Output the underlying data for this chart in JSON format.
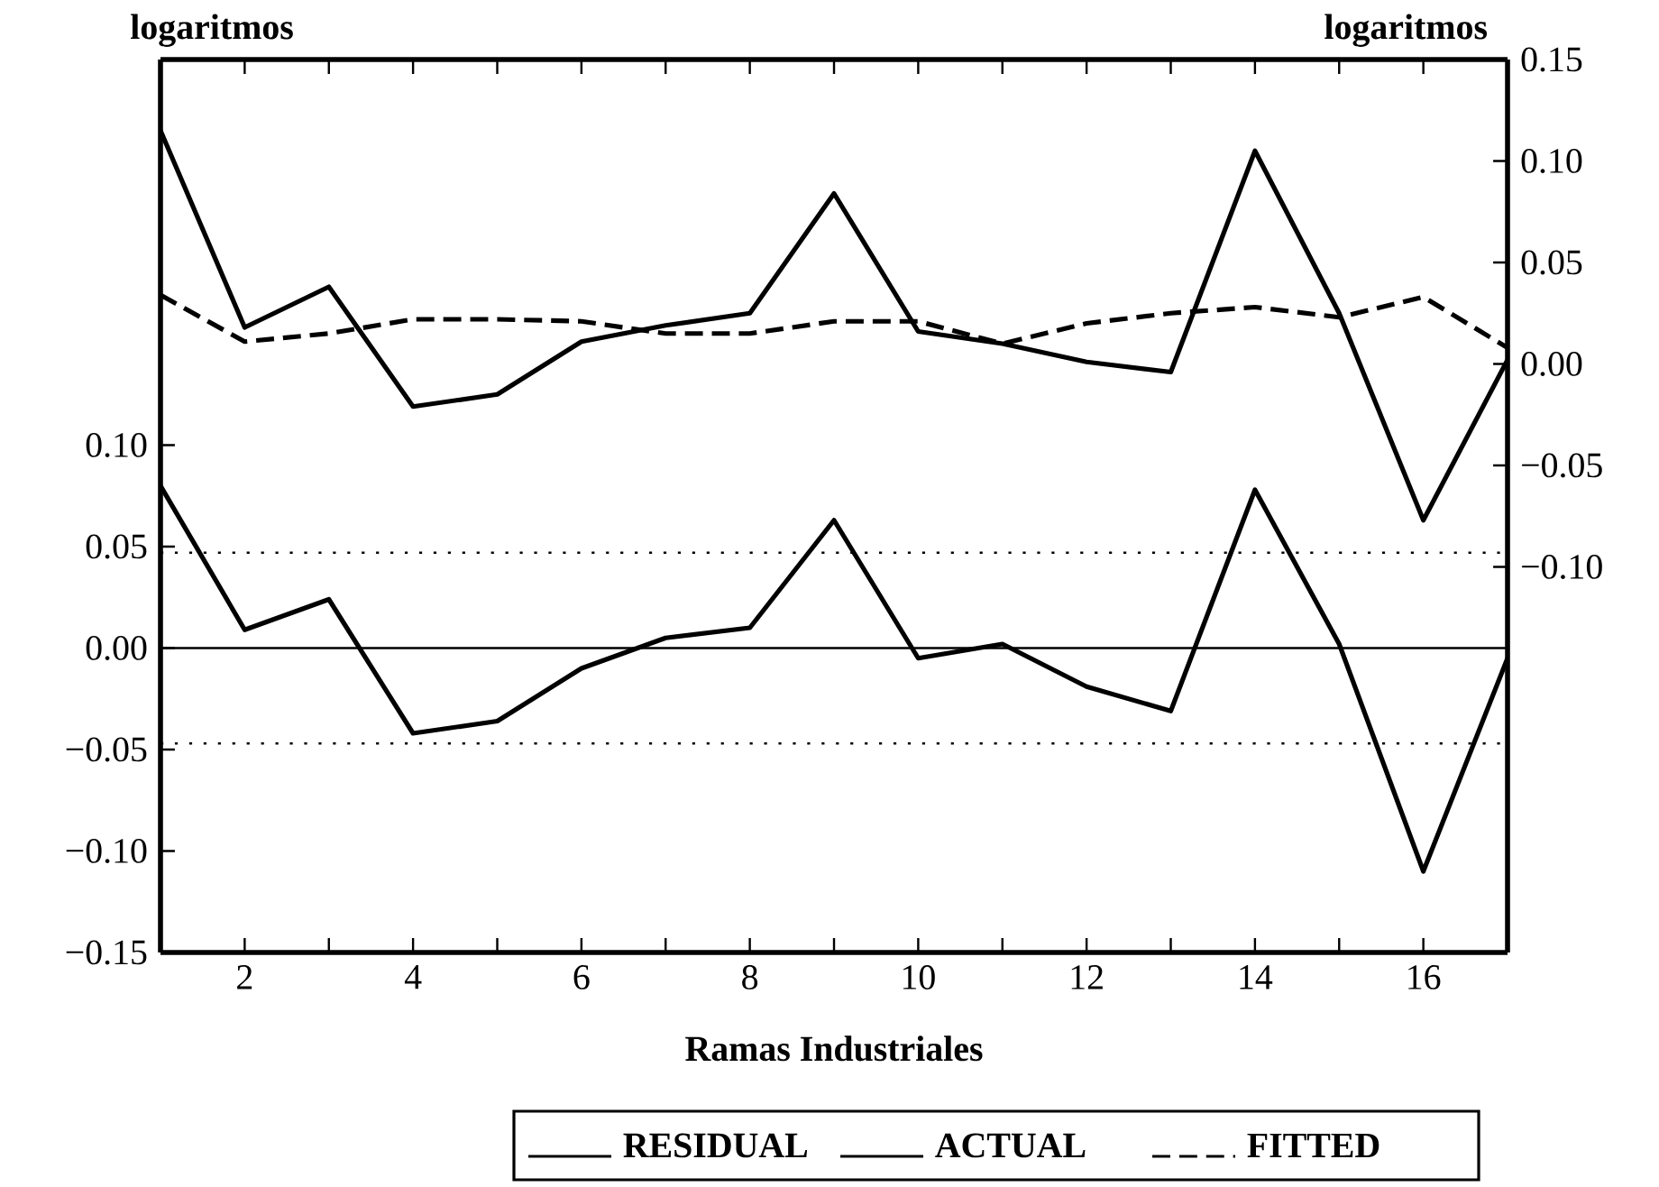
{
  "chart_data": {
    "type": "line",
    "xlabel": "Ramas Industriales",
    "ylabel": "logaritmos",
    "y2label": "logaritmos",
    "x": [
      1,
      2,
      3,
      4,
      5,
      6,
      7,
      8,
      9,
      10,
      11,
      12,
      13,
      14,
      15,
      16,
      17
    ],
    "series": [
      {
        "name": "RESIDUAL",
        "color": "#000000",
        "axis": "y",
        "line_style": "solid",
        "values": [
          0.08,
          0.009,
          0.024,
          -0.042,
          -0.036,
          -0.01,
          0.005,
          0.01,
          0.063,
          -0.005,
          0.002,
          -0.019,
          -0.031,
          0.078,
          0.002,
          -0.11,
          -0.005
        ]
      },
      {
        "name": "ACTUAL",
        "color": "#000000",
        "axis": "y2",
        "line_style": "solid",
        "values": [
          0.115,
          0.018,
          0.038,
          -0.021,
          -0.015,
          0.011,
          0.019,
          0.025,
          0.084,
          0.016,
          0.01,
          0.001,
          -0.004,
          0.105,
          0.025,
          -0.077,
          0.002
        ]
      },
      {
        "name": "FITTED",
        "color": "#000000",
        "axis": "y2",
        "line_style": "dashed",
        "values": [
          0.034,
          0.011,
          0.015,
          0.022,
          0.022,
          0.021,
          0.015,
          0.015,
          0.021,
          0.021,
          0.01,
          0.02,
          0.025,
          0.028,
          0.023,
          0.033,
          0.008
        ]
      }
    ],
    "xlim": [
      1,
      17
    ],
    "xticks": [
      {
        "value": 1,
        "label": null
      },
      2,
      {
        "value": 3,
        "label": null
      },
      4,
      {
        "value": 5,
        "label": null
      },
      6,
      {
        "value": 7,
        "label": null
      },
      8,
      {
        "value": 9,
        "label": null
      },
      10,
      {
        "value": 11,
        "label": null
      },
      12,
      {
        "value": 13,
        "label": null
      },
      14,
      {
        "value": 15,
        "label": null
      },
      16,
      {
        "value": 17,
        "label": null
      }
    ],
    "ylim": [
      -0.15,
      0.29
    ],
    "yticks": [
      {
        "value": -0.15,
        "label": "−0.15"
      },
      {
        "value": -0.1,
        "label": "−0.10"
      },
      {
        "value": -0.05,
        "label": "−0.05"
      },
      {
        "value": 0,
        "label": "0.00"
      },
      {
        "value": 0.05,
        "label": "0.05"
      },
      {
        "value": 0.1,
        "label": "0.10"
      }
    ],
    "y2lim": [
      -0.29,
      0.15
    ],
    "y2ticks": [
      {
        "value": -0.1,
        "label": "−0.10"
      },
      {
        "value": -0.05,
        "label": "−0.05"
      },
      {
        "value": 0,
        "label": "0.00"
      },
      {
        "value": 0.05,
        "label": "0.05"
      },
      {
        "value": 0.1,
        "label": "0.10"
      },
      {
        "value": 0.15,
        "label": "0.15"
      }
    ],
    "ref_lines": [
      {
        "axis": "y",
        "value": 0.047,
        "line_style": "dotted"
      },
      {
        "axis": "y",
        "value": 0,
        "line_style": "solid"
      },
      {
        "axis": "y",
        "value": -0.047,
        "line_style": "dotted"
      }
    ],
    "legend": "bottom",
    "marker": "none"
  }
}
